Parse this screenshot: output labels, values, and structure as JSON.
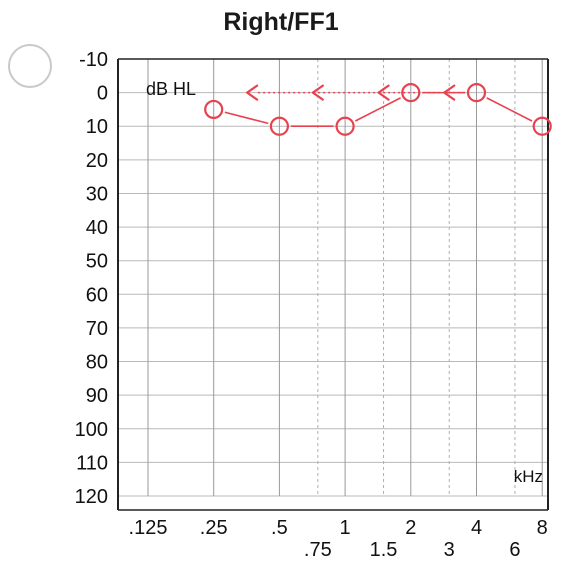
{
  "title": "Right/FF1",
  "chart_data": {
    "type": "scatter",
    "title": "Right/FF1",
    "ylabel": "dB HL",
    "xlabel": "kHz",
    "ylim": [
      -10,
      120
    ],
    "y_inverted": true,
    "yticks": [
      -10,
      0,
      10,
      20,
      30,
      40,
      50,
      60,
      70,
      80,
      90,
      100,
      110,
      120
    ],
    "ytick_labels": [
      "-10",
      "0",
      "10",
      "20",
      "30",
      "40",
      "50",
      "60",
      "70",
      "80",
      "90",
      "100",
      "110",
      "120"
    ],
    "x_scale": "log2",
    "xlim": [
      0.125,
      8
    ],
    "xticks_major": [
      0.125,
      0.25,
      0.5,
      1,
      2,
      4,
      8
    ],
    "xtick_labels_major": [
      ".125",
      ".25",
      ".5",
      "1",
      "2",
      "4",
      "8"
    ],
    "xticks_minor": [
      0.75,
      1.5,
      3,
      6
    ],
    "xtick_labels_minor": [
      ".75",
      "1.5",
      "3",
      "6"
    ],
    "grid": true,
    "color": "#e8414f",
    "series": [
      {
        "marker": "circle",
        "connected": true,
        "x": [
          0.25,
          0.5,
          1,
          2,
          4,
          8
        ],
        "y": [
          5,
          10,
          10,
          0,
          0,
          10
        ]
      },
      {
        "marker": "left-angle",
        "connected": false,
        "x": [
          0.375,
          0.75,
          1.5,
          3
        ],
        "y": [
          0,
          0,
          0,
          0
        ]
      }
    ]
  }
}
